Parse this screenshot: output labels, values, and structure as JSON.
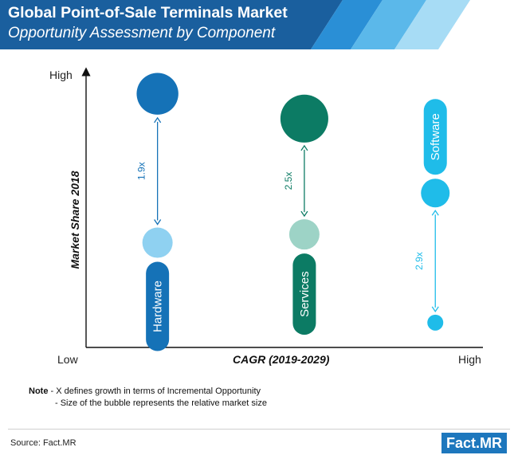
{
  "header": {
    "title": "Global Point-of-Sale Terminals Market",
    "subtitle": "Opportunity Assessment by Component"
  },
  "chart_data": {
    "type": "scatter",
    "xlabel": "CAGR (2019-2029)",
    "ylabel": "Market Share 2018",
    "x_tick_labels": [
      "Low",
      "High"
    ],
    "y_tick_labels": [
      "High"
    ],
    "x_scale": "qualitative (Low to High)",
    "y_scale": "qualitative (Low to High)",
    "grid": false,
    "legend": "none",
    "series": [
      {
        "name": "Hardware",
        "color": "#1572b7",
        "light_color": "#8fd1f1",
        "multiplier_label": "1.9x",
        "current_point": {
          "x": 0.18,
          "y": 0.38,
          "size": 1.0
        },
        "target_point": {
          "x": 0.18,
          "y": 0.92,
          "size": 1.9
        }
      },
      {
        "name": "Services",
        "color": "#0c7b64",
        "light_color": "#9dd3c6",
        "multiplier_label": "2.5x",
        "current_point": {
          "x": 0.55,
          "y": 0.41,
          "size": 1.0
        },
        "target_point": {
          "x": 0.55,
          "y": 0.83,
          "size": 2.5
        }
      },
      {
        "name": "Software",
        "color": "#1fbce9",
        "light_color": "#1fbce9",
        "multiplier_label": "2.9x",
        "current_point": {
          "x": 0.88,
          "y": 0.09,
          "size": 1.0
        },
        "target_point": {
          "x": 0.88,
          "y": 0.56,
          "size": 2.9
        }
      }
    ]
  },
  "notes": {
    "label": "Note",
    "line1": "- X defines growth in terms of Incremental Opportunity",
    "line2": "- Size of the bubble represents the relative market size"
  },
  "footer": {
    "source": "Source: Fact.MR",
    "logo": "Fact.MR"
  }
}
